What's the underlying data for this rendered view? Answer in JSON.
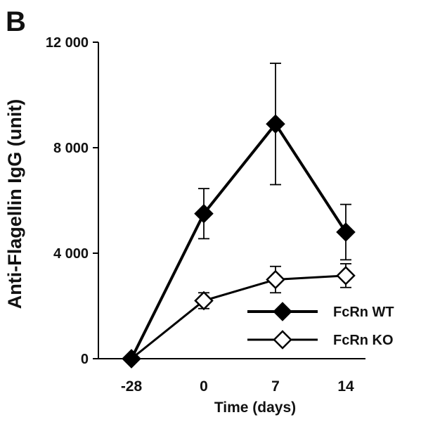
{
  "panel_label": "B",
  "chart_data": {
    "type": "line",
    "title": "",
    "xlabel": "Time (days)",
    "ylabel": "Anti-Flagellin IgG (unit)",
    "categories": [
      "-28",
      "0",
      "7",
      "14"
    ],
    "yticks": [
      "0",
      "4 000",
      "8 000",
      "12 000"
    ],
    "ylim": [
      0,
      12000
    ],
    "grid": false,
    "legend_position": "bottom-right",
    "series": [
      {
        "name": "FcRn WT",
        "marker": "filled-diamond",
        "color": "#000000",
        "values": [
          0,
          5500,
          8900,
          4800
        ],
        "error": [
          0,
          950,
          2300,
          1050
        ]
      },
      {
        "name": "FcRn KO",
        "marker": "open-diamond",
        "color": "#000000",
        "values": [
          0,
          2200,
          3000,
          3150
        ],
        "error": [
          0,
          300,
          500,
          450
        ]
      }
    ]
  }
}
